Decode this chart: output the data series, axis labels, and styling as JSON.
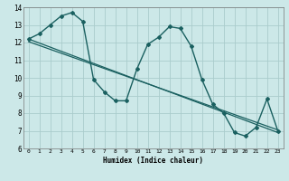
{
  "xlabel": "Humidex (Indice chaleur)",
  "bg_color": "#cce8e8",
  "grid_color": "#aacccc",
  "line_color": "#1a6060",
  "xlim": [
    -0.5,
    23.5
  ],
  "ylim": [
    6,
    14
  ],
  "xticks": [
    0,
    1,
    2,
    3,
    4,
    5,
    6,
    7,
    8,
    9,
    10,
    11,
    12,
    13,
    14,
    15,
    16,
    17,
    18,
    19,
    20,
    21,
    22,
    23
  ],
  "yticks": [
    6,
    7,
    8,
    9,
    10,
    11,
    12,
    13,
    14
  ],
  "curve1_x": [
    0,
    1,
    2,
    3,
    4,
    5,
    6,
    7,
    8,
    9,
    10,
    11,
    12,
    13,
    14,
    15,
    16,
    17,
    18,
    19,
    20,
    21,
    22,
    23
  ],
  "curve1_y": [
    12.2,
    12.5,
    13.0,
    13.5,
    13.7,
    13.2,
    9.9,
    9.2,
    8.7,
    8.7,
    10.5,
    11.9,
    12.3,
    12.9,
    12.8,
    11.8,
    9.9,
    8.5,
    8.0,
    6.9,
    6.7,
    7.2,
    8.8,
    7.0
  ],
  "trend1_x": [
    0,
    23
  ],
  "trend1_y": [
    12.2,
    6.9
  ],
  "trend2_x": [
    0,
    23
  ],
  "trend2_y": [
    12.05,
    7.05
  ]
}
